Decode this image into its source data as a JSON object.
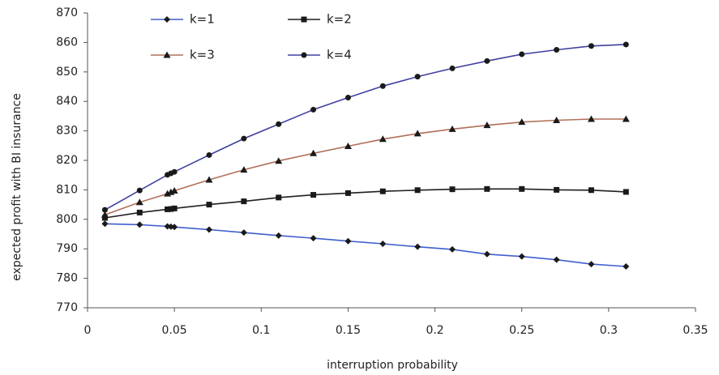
{
  "chart_data": {
    "type": "line",
    "title": "",
    "xlabel": "interruption probability",
    "ylabel": "expected profit with BI insurance",
    "xlim": [
      0,
      0.35
    ],
    "ylim": [
      770,
      870
    ],
    "xticks": [
      0,
      0.05,
      0.1,
      0.15,
      0.2,
      0.25,
      0.3,
      0.35
    ],
    "xtick_labels": [
      "0",
      "0.05",
      "0.1",
      "0.15",
      "0.2",
      "0.25",
      "0.3",
      "0.35"
    ],
    "yticks": [
      770,
      780,
      790,
      800,
      810,
      820,
      830,
      840,
      850,
      860,
      870
    ],
    "ytick_labels": [
      "770",
      "780",
      "790",
      "800",
      "810",
      "820",
      "830",
      "840",
      "850",
      "860",
      "870"
    ],
    "grid": false,
    "legend_position": "top",
    "series": [
      {
        "name": "k=1",
        "color": "#3f5fcf",
        "marker": "diamond",
        "x": [
          0.01,
          0.03,
          0.046,
          0.048,
          0.05,
          0.07,
          0.09,
          0.11,
          0.13,
          0.15,
          0.17,
          0.19,
          0.21,
          0.23,
          0.25,
          0.27,
          0.29,
          0.31
        ],
        "y": [
          798.5,
          798.2,
          797.6,
          797.5,
          797.4,
          796.5,
          795.5,
          794.5,
          793.6,
          792.6,
          791.7,
          790.7,
          789.8,
          788.2,
          787.4,
          786.3,
          784.8,
          784.0
        ]
      },
      {
        "name": "k=2",
        "color": "#1f1f1f",
        "marker": "square",
        "x": [
          0.01,
          0.03,
          0.046,
          0.048,
          0.05,
          0.07,
          0.09,
          0.11,
          0.13,
          0.15,
          0.17,
          0.19,
          0.21,
          0.23,
          0.25,
          0.27,
          0.29,
          0.31
        ],
        "y": [
          800.5,
          802.3,
          803.4,
          803.5,
          803.7,
          805.0,
          806.1,
          807.4,
          808.3,
          808.9,
          809.5,
          809.9,
          810.2,
          810.3,
          810.3,
          810.0,
          809.9,
          809.3
        ]
      },
      {
        "name": "k=3",
        "color": "#b07058",
        "marker": "triangle",
        "x": [
          0.01,
          0.03,
          0.046,
          0.048,
          0.05,
          0.07,
          0.09,
          0.11,
          0.13,
          0.15,
          0.17,
          0.19,
          0.21,
          0.23,
          0.25,
          0.27,
          0.29,
          0.31
        ],
        "y": [
          801.5,
          805.8,
          808.7,
          809.2,
          809.7,
          813.4,
          816.8,
          819.8,
          822.4,
          824.8,
          827.2,
          829.1,
          830.6,
          831.9,
          833.0,
          833.6,
          834.0,
          834.0
        ]
      },
      {
        "name": "k=4",
        "color": "#4040a0",
        "marker": "circle",
        "x": [
          0.01,
          0.03,
          0.046,
          0.048,
          0.05,
          0.07,
          0.09,
          0.11,
          0.13,
          0.15,
          0.17,
          0.19,
          0.21,
          0.23,
          0.25,
          0.27,
          0.29,
          0.31
        ],
        "y": [
          803.2,
          809.8,
          815.1,
          815.6,
          816.1,
          821.8,
          827.4,
          832.3,
          837.2,
          841.3,
          845.2,
          848.4,
          851.2,
          853.7,
          856.0,
          857.5,
          858.8,
          859.3
        ]
      }
    ]
  }
}
